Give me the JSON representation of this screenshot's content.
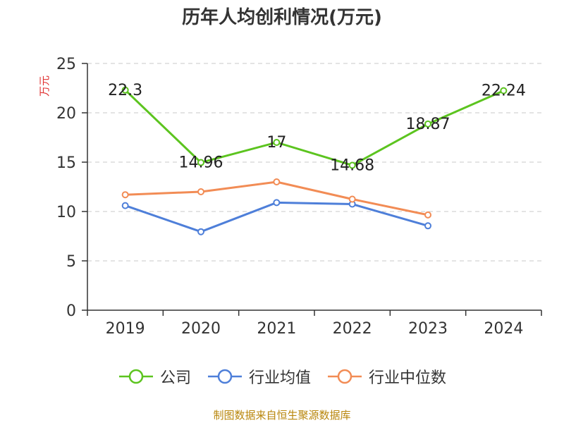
{
  "chart_data": {
    "type": "line",
    "title": "历年人均创利情况(万元)",
    "ylabel": "万元",
    "xlabel": "",
    "categories": [
      "2019",
      "2020",
      "2021",
      "2022",
      "2023",
      "2024"
    ],
    "ylim": [
      0,
      25
    ],
    "yticks": [
      0,
      5,
      10,
      15,
      20,
      25
    ],
    "grid": true,
    "legend_position": "bottom",
    "series": [
      {
        "name": "公司",
        "color": "#5cc41f",
        "values": [
          22.3,
          14.96,
          17,
          14.68,
          18.87,
          22.24
        ],
        "labels": [
          "22.3",
          "14.96",
          "17",
          "14.68",
          "18.87",
          "22.24"
        ]
      },
      {
        "name": "行业均值",
        "color": "#4e7fd9",
        "values": [
          10.6,
          7.95,
          10.9,
          10.75,
          8.55,
          null
        ]
      },
      {
        "name": "行业中位数",
        "color": "#f28c55",
        "values": [
          11.7,
          12.0,
          13.0,
          11.25,
          9.65,
          null
        ]
      }
    ]
  },
  "footer": {
    "source": "制图数据来自恒生聚源数据库"
  }
}
